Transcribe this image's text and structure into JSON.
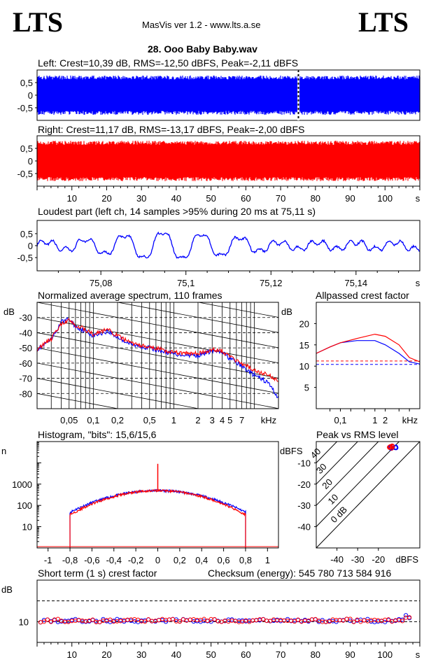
{
  "header": {
    "logo_left": "LTS",
    "logo_right": "LTS",
    "app_info": "MasVis ver 1.2 - www.lts.a.se",
    "file_title": "28. Ooo Baby Baby.wav"
  },
  "colors": {
    "left": "#0000ff",
    "right": "#ff0000"
  },
  "chart_data": [
    {
      "id": "left-waveform",
      "type": "area",
      "title": "Left: Crest=10,39 dB, RMS=-12,50 dBFS, Peak=-2,11 dBFS",
      "color": "#0000ff",
      "yticks": [
        "0,5",
        "0",
        "-0,5"
      ],
      "ylim": [
        -1,
        1
      ],
      "envelope": 0.78,
      "marker_x_s": 75.11
    },
    {
      "id": "right-waveform",
      "type": "area",
      "title": "Right: Crest=11,17 dB, RMS=-13,17 dBFS, Peak=-2,00 dBFS",
      "color": "#ff0000",
      "yticks": [
        "0,5",
        "0",
        "-0,5"
      ],
      "ylim": [
        -1,
        1
      ],
      "envelope": 0.8,
      "xticks": [
        "10",
        "20",
        "30",
        "40",
        "50",
        "60",
        "70",
        "80",
        "90",
        "100",
        "s"
      ]
    },
    {
      "id": "loudest-part",
      "type": "line",
      "title": "Loudest part (left  ch, 14 samples >95% during 20 ms at 75,11 s)",
      "color": "#0000ff",
      "yticks": [
        "0,5",
        "0",
        "-0,5"
      ],
      "ylim": [
        -1,
        1
      ],
      "xlim": [
        75.065,
        75.155
      ],
      "xticks": [
        "75,08",
        "75,1",
        "75,12",
        "75,14",
        "s"
      ]
    },
    {
      "id": "spectrum",
      "type": "line",
      "title": "Normalized average spectrum, 110 frames",
      "ylabel": "dB",
      "yticks": [
        "-30",
        "-40",
        "-50",
        "-60",
        "-70",
        "-80"
      ],
      "xticks": [
        "0,05",
        "0,1",
        "0,2",
        "0,5",
        "1",
        "2",
        "3",
        "4",
        "5",
        "7",
        "kHz"
      ],
      "ylim": [
        -90,
        -20
      ],
      "xlim_khz": [
        0.02,
        20
      ],
      "series": [
        {
          "color": "#0000ff",
          "x": [
            0.02,
            0.03,
            0.04,
            0.05,
            0.06,
            0.08,
            0.1,
            0.15,
            0.2,
            0.3,
            0.5,
            0.7,
            1,
            2,
            3,
            4,
            5,
            7,
            10,
            15,
            20
          ],
          "y": [
            -51,
            -45,
            -33,
            -31,
            -36,
            -39,
            -42,
            -39,
            -43,
            -48,
            -50,
            -52,
            -54,
            -55,
            -52,
            -53,
            -57,
            -62,
            -68,
            -73,
            -83
          ]
        },
        {
          "color": "#ff0000",
          "x": [
            0.02,
            0.03,
            0.04,
            0.05,
            0.06,
            0.08,
            0.1,
            0.15,
            0.2,
            0.3,
            0.5,
            0.7,
            1,
            2,
            3,
            4,
            5,
            7,
            10,
            15,
            20
          ],
          "y": [
            -51,
            -44,
            -34,
            -32,
            -35,
            -38,
            -41,
            -38,
            -42,
            -47,
            -50,
            -51,
            -53,
            -54,
            -51,
            -52,
            -56,
            -60,
            -65,
            -68,
            -71
          ]
        }
      ]
    },
    {
      "id": "allpassed-crest",
      "type": "line",
      "title": "Allpassed crest factor",
      "ylabel": "dB",
      "yticks": [
        "20",
        "15",
        "10",
        "5"
      ],
      "ylim": [
        0,
        25
      ],
      "xticks": [
        "0,1",
        "1",
        "2",
        "kHz"
      ],
      "xlim_khz": [
        0.02,
        20
      ],
      "reference": {
        "left": 10.4,
        "right": 11.2
      },
      "series": [
        {
          "color": "#0000ff",
          "x": [
            0.02,
            0.05,
            0.1,
            0.3,
            1,
            2,
            5,
            10,
            20
          ],
          "y": [
            13,
            14.5,
            15.5,
            16,
            16,
            15,
            13,
            11,
            10.5
          ]
        },
        {
          "color": "#ff0000",
          "x": [
            0.02,
            0.05,
            0.1,
            0.3,
            1,
            2,
            5,
            10,
            20
          ],
          "y": [
            13,
            14.5,
            15.5,
            16.5,
            17.5,
            17,
            15,
            12,
            11
          ]
        }
      ]
    },
    {
      "id": "histogram",
      "type": "line",
      "title": "Histogram, \"bits\": 15,6/15,6",
      "ylabel": "n",
      "yticks": [
        "1000",
        "100",
        "10"
      ],
      "xticks": [
        "-1",
        "-0,8",
        "-0,6",
        "-0,4",
        "-0,2",
        "0",
        "0,2",
        "0,4",
        "0,6",
        "0,8",
        "1"
      ],
      "xlim": [
        -1.1,
        1.1
      ],
      "ylim_log": [
        1,
        100000
      ],
      "peak_counts": 500,
      "edge": 0.8
    },
    {
      "id": "peak-vs-rms",
      "type": "scatter",
      "title": "Peak vs RMS level",
      "ylabel": "dBFS",
      "xlabel": "dBFS",
      "yticks": [
        "-10",
        "-20",
        "-30",
        "-40"
      ],
      "xticks": [
        "-40",
        "-30",
        "-20"
      ],
      "xlim": [
        -50,
        0
      ],
      "ylim": [
        -50,
        0
      ],
      "diagonals": [
        "40",
        "30",
        "20",
        "10",
        "0 dB"
      ],
      "points": [
        {
          "color": "#0000ff",
          "rms": -12.5,
          "peak": -2.11
        },
        {
          "color": "#ff0000",
          "rms": -13.17,
          "peak": -2.0
        }
      ]
    },
    {
      "id": "short-term-crest",
      "type": "scatter",
      "title": "Short term (1 s) crest factor",
      "checksum": "Checksum (energy):   545 780 713 584 916",
      "ylabel": "dB",
      "yticks": [
        "10"
      ],
      "xticks": [
        "10",
        "20",
        "30",
        "40",
        "50",
        "60",
        "70",
        "80",
        "90",
        "100",
        "s"
      ],
      "xlim": [
        0,
        110
      ],
      "ylim": [
        0,
        30
      ],
      "reference_db": 20,
      "level_db": 10.5
    }
  ]
}
